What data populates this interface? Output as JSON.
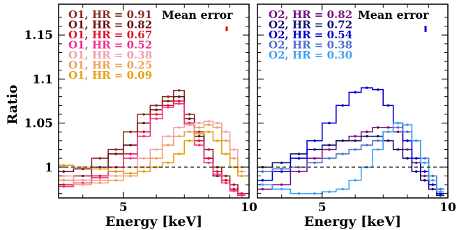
{
  "chart_data": [
    {
      "type": "line",
      "panel": "left",
      "xlabel": "Energy [keV]",
      "ylabel": "Ratio",
      "xlim": [
        3.5,
        10
      ],
      "ylim": [
        0.965,
        1.185
      ],
      "xscale": "log",
      "xticks": [
        5,
        10
      ],
      "yticks": [
        1,
        1.05,
        1.1,
        1.15
      ],
      "ytick_labels": [
        "1",
        "1.05",
        "1.1",
        "1.15"
      ],
      "reference_line": 1,
      "mean_error_label": "Mean error",
      "mean_error_value": 0.0025,
      "mean_error_color": "#cc0000",
      "series": [
        {
          "name": "O1, HR = 0.91",
          "color": "#8b2a1e",
          "x": [
            3.6,
            4.0,
            4.4,
            4.8,
            5.2,
            5.6,
            6.0,
            6.4,
            6.8,
            7.2,
            7.6,
            8.0,
            8.4,
            8.8,
            9.2,
            9.6
          ],
          "y": [
            0.985,
            0.99,
            1.01,
            1.02,
            1.04,
            1.06,
            1.07,
            1.08,
            1.087,
            1.06,
            1.04,
            1.02,
            1.0,
            0.99,
            0.98,
            0.97
          ]
        },
        {
          "name": "O1, HR = 0.82",
          "color": "#6b0f14",
          "x": [
            3.6,
            4.0,
            4.4,
            4.8,
            5.2,
            5.6,
            6.0,
            6.4,
            6.8,
            7.2,
            7.6,
            8.0,
            8.4,
            8.8,
            9.2,
            9.6
          ],
          "y": [
            0.995,
            0.998,
            1.0,
            1.015,
            1.025,
            1.05,
            1.065,
            1.075,
            1.08,
            1.055,
            1.035,
            1.01,
            0.99,
            0.985,
            0.975,
            0.968
          ]
        },
        {
          "name": "O1, HR = 0.67",
          "color": "#e0102a",
          "x": [
            3.6,
            4.0,
            4.4,
            4.8,
            5.2,
            5.6,
            6.0,
            6.4,
            6.8,
            7.2,
            7.6,
            8.0,
            8.4,
            8.8,
            9.2,
            9.6
          ],
          "y": [
            0.98,
            0.985,
            0.99,
            1.0,
            1.015,
            1.04,
            1.06,
            1.07,
            1.075,
            1.05,
            1.03,
            1.01,
            0.995,
            0.985,
            0.975,
            0.97
          ]
        },
        {
          "name": "O1, HR = 0.52",
          "color": "#f0308a",
          "x": [
            3.6,
            4.0,
            4.4,
            4.8,
            5.2,
            5.6,
            6.0,
            6.4,
            6.8,
            7.2,
            7.6,
            8.0,
            8.4,
            8.8,
            9.2,
            9.6
          ],
          "y": [
            0.978,
            0.982,
            0.988,
            0.995,
            1.01,
            1.035,
            1.055,
            1.068,
            1.072,
            1.048,
            1.025,
            1.005,
            0.992,
            0.982,
            0.973,
            0.968
          ]
        },
        {
          "name": "O1, HR = 0.38",
          "color": "#f4a0a8",
          "x": [
            3.6,
            4.0,
            4.4,
            4.8,
            5.2,
            5.6,
            6.0,
            6.4,
            6.8,
            7.2,
            7.6,
            8.0,
            8.4,
            8.8,
            9.2,
            9.6
          ],
          "y": [
            0.99,
            0.985,
            0.985,
            0.99,
            1.0,
            1.01,
            1.02,
            1.035,
            1.045,
            1.048,
            1.05,
            1.052,
            1.05,
            1.04,
            1.02,
            1.0
          ]
        },
        {
          "name": "O1, HR = 0.25",
          "color": "#f0a060",
          "x": [
            3.6,
            4.0,
            4.4,
            4.8,
            5.2,
            5.6,
            6.0,
            6.4,
            6.8,
            7.2,
            7.6,
            8.0,
            8.4,
            8.8,
            9.2,
            9.6
          ],
          "y": [
            0.985,
            0.98,
            0.982,
            0.985,
            0.99,
            1.0,
            1.01,
            1.025,
            1.035,
            1.04,
            1.045,
            1.048,
            1.045,
            1.03,
            1.01,
            0.995
          ]
        },
        {
          "name": "O1, HR = 0.09",
          "color": "#e8a010",
          "x": [
            3.6,
            4.0,
            4.4,
            4.8,
            5.2,
            5.6,
            6.0,
            6.4,
            6.8,
            7.2,
            7.6,
            8.0,
            8.4,
            8.8,
            9.2,
            9.6
          ],
          "y": [
            1.002,
            1.0,
            0.998,
            0.995,
            0.993,
            0.995,
            1.0,
            1.005,
            1.015,
            1.03,
            1.038,
            1.04,
            1.03,
            1.015,
            1.0,
            0.99
          ]
        }
      ]
    },
    {
      "type": "line",
      "panel": "right",
      "xlabel": "Energy [keV]",
      "ylabel": "",
      "xlim": [
        3.5,
        10
      ],
      "ylim": [
        0.965,
        1.185
      ],
      "xscale": "log",
      "xticks": [
        5,
        10
      ],
      "reference_line": 1,
      "mean_error_label": "Mean error",
      "mean_error_value": 0.0035,
      "mean_error_color": "#0000cc",
      "series": [
        {
          "name": "O2, HR = 0.82",
          "color": "#7a1080",
          "x": [
            3.6,
            4.0,
            4.4,
            4.8,
            5.2,
            5.6,
            6.0,
            6.4,
            6.8,
            7.2,
            7.6,
            8.0,
            8.4,
            8.8,
            9.2,
            9.6
          ],
          "y": [
            0.975,
            0.98,
            0.995,
            1.01,
            1.02,
            1.03,
            1.035,
            1.04,
            1.045,
            1.045,
            1.04,
            1.02,
            1.005,
            0.99,
            0.98,
            0.975
          ]
        },
        {
          "name": "O2, HR = 0.72",
          "color": "#101070",
          "x": [
            3.6,
            4.0,
            4.4,
            4.8,
            5.2,
            5.6,
            6.0,
            6.4,
            6.8,
            7.2,
            7.6,
            8.0,
            8.4,
            8.8,
            9.2,
            9.6
          ],
          "y": [
            1.0,
            1.005,
            1.015,
            1.02,
            1.025,
            1.03,
            1.03,
            1.035,
            1.035,
            1.03,
            1.02,
            1.01,
            0.995,
            0.985,
            0.975,
            0.968
          ]
        },
        {
          "name": "O2, HR = 0.54",
          "color": "#0000d0",
          "x": [
            3.6,
            4.0,
            4.4,
            4.8,
            5.2,
            5.6,
            6.0,
            6.4,
            6.8,
            7.2,
            7.6,
            8.0,
            8.4,
            8.8,
            9.2,
            9.6
          ],
          "y": [
            0.985,
            0.995,
            1.01,
            1.03,
            1.05,
            1.07,
            1.085,
            1.09,
            1.088,
            1.07,
            1.05,
            1.03,
            1.01,
            0.995,
            0.98,
            0.97
          ]
        },
        {
          "name": "O2, HR = 0.38",
          "color": "#5070d0",
          "x": [
            3.6,
            4.0,
            4.4,
            4.8,
            5.2,
            5.6,
            6.0,
            6.4,
            6.8,
            7.2,
            7.6,
            8.0,
            8.4,
            8.8,
            9.2,
            9.6
          ],
          "y": [
            0.995,
            0.998,
            1.0,
            1.005,
            1.01,
            1.015,
            1.02,
            1.025,
            1.03,
            1.04,
            1.045,
            1.04,
            1.03,
            1.01,
            0.99,
            0.975
          ]
        },
        {
          "name": "O2, HR = 0.30",
          "color": "#40a0f0",
          "x": [
            3.6,
            4.0,
            4.4,
            4.8,
            5.2,
            5.6,
            6.0,
            6.4,
            6.8,
            7.2,
            7.6,
            8.0,
            8.4,
            8.8,
            9.2,
            9.6
          ],
          "y": [
            0.98,
            0.975,
            0.97,
            0.97,
            0.972,
            0.975,
            0.985,
            1.0,
            1.02,
            1.04,
            1.05,
            1.048,
            1.03,
            1.005,
            0.985,
            0.972
          ]
        }
      ]
    }
  ]
}
